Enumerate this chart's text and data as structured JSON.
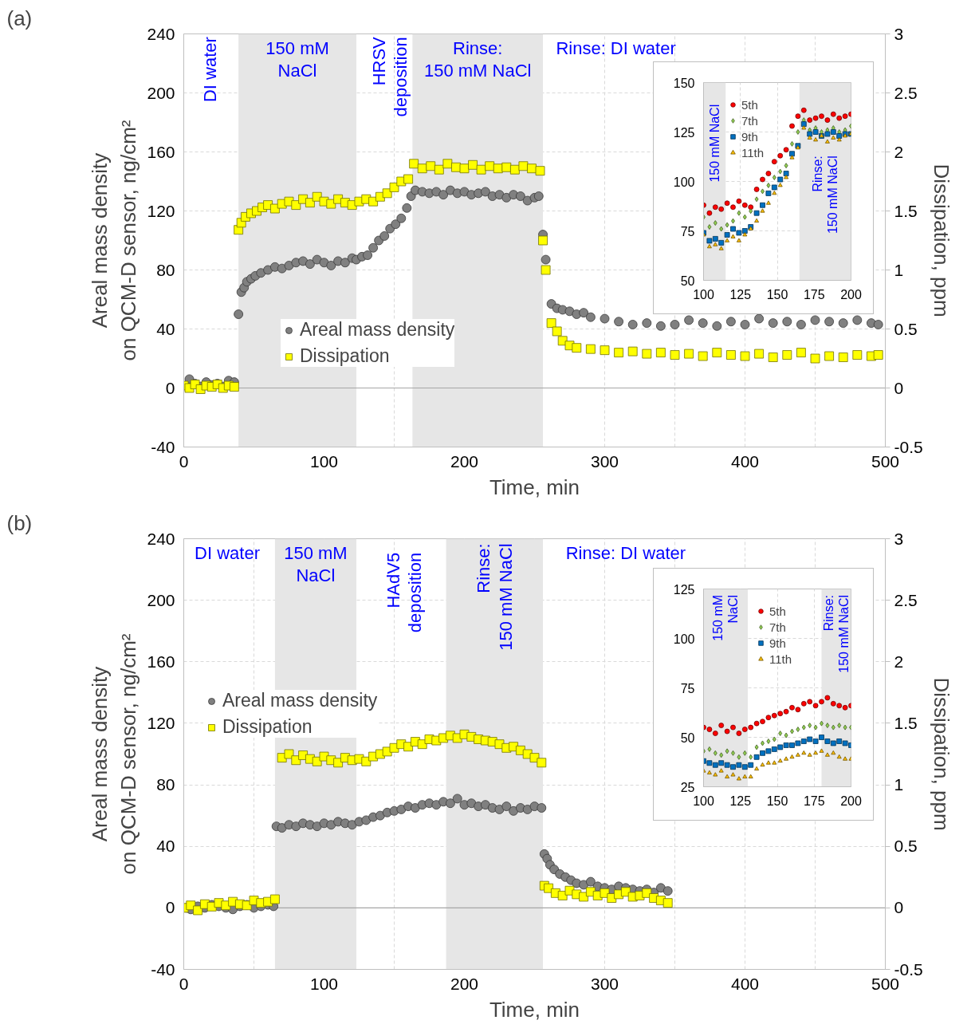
{
  "chart_data": [
    {
      "type": "scatter",
      "xlabel": "Time, min",
      "ylabel": "Areal mass density\non QCM-D sensor, ng/cm²",
      "y2label": "Dissipation, ppm",
      "annotations": [
        "(a)",
        "DI water",
        "HRSV\ndeposition",
        "Rinse: DI water"
      ],
      "xlim": [
        0,
        500
      ],
      "xticks": [
        0,
        {
          "value": 50,
          "label": null
        },
        100,
        {
          "value": 150,
          "label": null
        },
        200,
        {
          "value": 250,
          "label": null
        },
        300,
        {
          "value": 350,
          "label": null
        },
        400,
        {
          "value": 450,
          "label": null
        },
        500
      ],
      "ylim": [
        -40,
        240
      ],
      "yticks": [
        -40,
        0,
        40,
        80,
        120,
        160,
        200,
        240
      ],
      "y2lim": [
        -0.5,
        3
      ],
      "y2ticks": [
        -0.5,
        0,
        0.5,
        1,
        1.5,
        2,
        2.5,
        3
      ],
      "grid": true,
      "legend": "bottom left",
      "ref_lines": [
        {
          "axis": "y",
          "value": 0,
          "color": "#a6a6a6"
        }
      ],
      "bands": [
        {
          "axis": "x",
          "from": 39,
          "to": 123,
          "label": "150 mM\nNaCl",
          "color": "#e6e6e6"
        },
        {
          "axis": "x",
          "from": 163,
          "to": 256,
          "label": "Rinse:\n150 mM NaCl",
          "color": "#e6e6e6"
        }
      ],
      "series": [
        {
          "name": "Areal mass density",
          "color": "#808080",
          "marker": "circle",
          "x": [
            4,
            8,
            12,
            16,
            20,
            24,
            28,
            32,
            36,
            39,
            41,
            43,
            45,
            48,
            51,
            55,
            60,
            65,
            70,
            75,
            80,
            85,
            90,
            95,
            100,
            105,
            110,
            115,
            120,
            123,
            127,
            131,
            135,
            139,
            143,
            147,
            151,
            155,
            159,
            162,
            165,
            170,
            175,
            180,
            185,
            190,
            195,
            200,
            205,
            210,
            215,
            220,
            225,
            230,
            235,
            240,
            245,
            250,
            253,
            256,
            258,
            262,
            266,
            270,
            275,
            280,
            285,
            290,
            300,
            310,
            320,
            330,
            340,
            350,
            360,
            370,
            380,
            390,
            400,
            410,
            420,
            430,
            440,
            450,
            460,
            470,
            480,
            490,
            495
          ],
          "values": [
            6,
            3,
            1,
            4,
            2,
            3,
            1,
            5,
            4,
            50,
            65,
            68,
            72,
            74,
            76,
            78,
            80,
            82,
            81,
            83,
            85,
            86,
            84,
            87,
            85,
            83,
            86,
            85,
            88,
            87,
            89,
            90,
            95,
            100,
            103,
            108,
            111,
            115,
            122,
            130,
            134,
            133,
            132,
            133,
            131,
            134,
            132,
            133,
            131,
            132,
            133,
            130,
            131,
            129,
            131,
            130,
            127,
            129,
            130,
            104,
            87,
            57,
            54,
            53,
            52,
            50,
            51,
            48,
            47,
            45,
            43,
            44,
            42,
            43,
            46,
            44,
            42,
            45,
            43,
            47,
            44,
            45,
            43,
            46,
            45,
            44,
            46,
            44,
            43
          ]
        },
        {
          "name": "Dissipation",
          "color": "#ffff00",
          "marker": "square",
          "axis": "y2",
          "x": [
            0,
            4,
            8,
            12,
            16,
            20,
            24,
            28,
            32,
            36,
            39,
            41,
            44,
            48,
            52,
            56,
            60,
            65,
            70,
            75,
            80,
            85,
            90,
            95,
            100,
            105,
            110,
            115,
            120,
            125,
            130,
            135,
            140,
            145,
            150,
            155,
            160,
            164,
            170,
            176,
            182,
            188,
            194,
            200,
            206,
            212,
            218,
            224,
            230,
            236,
            242,
            248,
            254,
            256,
            258,
            262,
            266,
            270,
            275,
            280,
            290,
            300,
            310,
            320,
            330,
            340,
            350,
            360,
            370,
            380,
            390,
            400,
            410,
            420,
            430,
            440,
            450,
            460,
            470,
            480,
            490,
            495
          ],
          "values": [
            0.02,
            0.0,
            0.03,
            -0.01,
            0.02,
            0.01,
            0.03,
            0.0,
            0.02,
            0.01,
            1.34,
            1.4,
            1.45,
            1.48,
            1.5,
            1.53,
            1.55,
            1.52,
            1.56,
            1.58,
            1.55,
            1.6,
            1.57,
            1.62,
            1.58,
            1.56,
            1.6,
            1.57,
            1.55,
            1.58,
            1.6,
            1.58,
            1.62,
            1.65,
            1.7,
            1.75,
            1.77,
            1.9,
            1.86,
            1.88,
            1.85,
            1.9,
            1.87,
            1.86,
            1.89,
            1.85,
            1.88,
            1.86,
            1.87,
            1.85,
            1.88,
            1.86,
            1.84,
            1.25,
            1.0,
            0.55,
            0.48,
            0.4,
            0.36,
            0.34,
            0.33,
            0.32,
            0.3,
            0.31,
            0.29,
            0.3,
            0.28,
            0.29,
            0.27,
            0.3,
            0.28,
            0.27,
            0.29,
            0.26,
            0.28,
            0.3,
            0.25,
            0.27,
            0.26,
            0.28,
            0.27,
            0.28
          ]
        }
      ]
    },
    {
      "type": "scatter",
      "xlim": [
        100,
        200
      ],
      "xticks": [
        100,
        125,
        150,
        175,
        200
      ],
      "ylim": [
        50,
        150
      ],
      "yticks": [
        50,
        75,
        100,
        125,
        150
      ],
      "grid": true,
      "legend": "top left",
      "bands": [
        {
          "axis": "x",
          "from": 100,
          "to": 115,
          "label": "150 mM NaCl",
          "color": "#e6e6e6"
        },
        {
          "axis": "x",
          "from": 165,
          "to": 200,
          "label": "Rinse:\n150 mM NaCl",
          "color": "#e6e6e6"
        }
      ],
      "x": [
        100,
        104,
        108,
        112,
        116,
        120,
        124,
        128,
        132,
        136,
        140,
        144,
        148,
        152,
        156,
        160,
        164,
        168,
        172,
        176,
        180,
        184,
        188,
        192,
        196,
        200
      ],
      "series": [
        {
          "name": "5th",
          "color": "#ff0000",
          "marker": "circle",
          "values": [
            88,
            84,
            87,
            86,
            89,
            87,
            90,
            88,
            87,
            96,
            101,
            104,
            110,
            113,
            116,
            128,
            133,
            136,
            131,
            132,
            133,
            131,
            134,
            132,
            133,
            134
          ]
        },
        {
          "name": "7th",
          "color": "#92d050",
          "marker": "diamond",
          "values": [
            82,
            77,
            79,
            76,
            78,
            80,
            84,
            82,
            85,
            91,
            95,
            98,
            102,
            105,
            108,
            119,
            125,
            131,
            126,
            127,
            125,
            126,
            127,
            125,
            126,
            128
          ]
        },
        {
          "name": "9th",
          "color": "#0070c0",
          "marker": "square",
          "values": [
            74,
            70,
            71,
            69,
            73,
            76,
            74,
            75,
            77,
            84,
            88,
            94,
            97,
            101,
            104,
            114,
            118,
            129,
            124,
            125,
            123,
            124,
            125,
            123,
            124,
            124
          ]
        },
        {
          "name": "11th",
          "color": "#ffc000",
          "marker": "triangle",
          "values": [
            73,
            67,
            68,
            66,
            70,
            72,
            70,
            73,
            76,
            80,
            85,
            89,
            94,
            98,
            102,
            112,
            117,
            127,
            122,
            121,
            123,
            120,
            122,
            121,
            123,
            124
          ]
        }
      ]
    },
    {
      "type": "scatter",
      "xlabel": "Time, min",
      "ylabel": "Areal mass density\non QCM-D sensor, ng/cm²",
      "y2label": "Dissipation, ppm",
      "annotations": [
        "(b)",
        "DI water",
        "HAdV5\ndeposition",
        "Rinse: DI water"
      ],
      "xlim": [
        0,
        500
      ],
      "xticks": [
        0,
        {
          "value": 50,
          "label": null
        },
        100,
        {
          "value": 150,
          "label": null
        },
        200,
        {
          "value": 250,
          "label": null
        },
        300,
        {
          "value": 350,
          "label": null
        },
        400,
        {
          "value": 450,
          "label": null
        },
        500
      ],
      "ylim": [
        -40,
        240
      ],
      "yticks": [
        -40,
        0,
        40,
        80,
        120,
        160,
        200,
        240
      ],
      "y2lim": [
        -0.5,
        3
      ],
      "y2ticks": [
        -0.5,
        0,
        0.5,
        1,
        1.5,
        2,
        2.5,
        3
      ],
      "grid": true,
      "legend": "top left",
      "ref_lines": [
        {
          "axis": "y",
          "value": 0,
          "color": "#a6a6a6"
        }
      ],
      "bands": [
        {
          "axis": "x",
          "from": 65,
          "to": 123,
          "label": "150 mM\nNaCl",
          "color": "#e6e6e6"
        },
        {
          "axis": "x",
          "from": 187,
          "to": 256,
          "label": "Rinse:\n150 mM NaCl",
          "color": "#e6e6e6"
        }
      ],
      "series": [
        {
          "name": "Areal mass density",
          "color": "#808080",
          "marker": "circle",
          "x": [
            2,
            5,
            10,
            15,
            20,
            25,
            30,
            35,
            40,
            45,
            50,
            55,
            60,
            64,
            66,
            70,
            75,
            80,
            85,
            90,
            95,
            100,
            105,
            110,
            115,
            120,
            125,
            130,
            135,
            140,
            145,
            150,
            155,
            160,
            165,
            170,
            175,
            180,
            185,
            190,
            195,
            200,
            205,
            210,
            215,
            220,
            225,
            230,
            235,
            240,
            245,
            250,
            255,
            257,
            259,
            261,
            264,
            268,
            272,
            276,
            280,
            285,
            290,
            295,
            300,
            305,
            310,
            315,
            320,
            325,
            330,
            335,
            340,
            345
          ],
          "values": [
            0,
            -1,
            1,
            0,
            2,
            1,
            0,
            -1,
            1,
            2,
            0,
            1,
            2,
            1,
            53,
            52,
            54,
            53,
            55,
            54,
            53,
            55,
            54,
            56,
            55,
            54,
            56,
            57,
            59,
            60,
            62,
            63,
            64,
            66,
            65,
            67,
            68,
            67,
            69,
            68,
            71,
            67,
            68,
            66,
            67,
            65,
            64,
            66,
            63,
            65,
            64,
            66,
            65,
            35,
            32,
            28,
            25,
            22,
            20,
            18,
            16,
            15,
            17,
            14,
            13,
            12,
            14,
            13,
            12,
            11,
            12,
            10,
            13,
            11
          ]
        },
        {
          "name": "Dissipation",
          "color": "#ffff00",
          "marker": "square",
          "axis": "y2",
          "x": [
            0,
            5,
            10,
            15,
            20,
            25,
            30,
            35,
            40,
            45,
            50,
            55,
            60,
            65,
            70,
            75,
            80,
            85,
            90,
            95,
            100,
            105,
            110,
            115,
            120,
            125,
            130,
            135,
            140,
            145,
            150,
            155,
            160,
            165,
            170,
            175,
            180,
            185,
            190,
            195,
            200,
            205,
            210,
            215,
            220,
            225,
            230,
            235,
            240,
            245,
            250,
            255,
            257,
            260,
            265,
            270,
            275,
            280,
            285,
            290,
            295,
            300,
            305,
            310,
            315,
            320,
            325,
            330,
            335,
            340,
            345
          ],
          "values": [
            0.0,
            0.02,
            -0.02,
            0.03,
            0.01,
            0.04,
            0.02,
            0.05,
            0.03,
            0.02,
            0.06,
            0.04,
            0.05,
            0.07,
            1.22,
            1.25,
            1.2,
            1.24,
            1.21,
            1.19,
            1.23,
            1.2,
            1.18,
            1.22,
            1.2,
            1.21,
            1.19,
            1.23,
            1.25,
            1.27,
            1.3,
            1.33,
            1.31,
            1.35,
            1.33,
            1.37,
            1.36,
            1.38,
            1.4,
            1.38,
            1.41,
            1.39,
            1.37,
            1.36,
            1.35,
            1.33,
            1.3,
            1.31,
            1.28,
            1.25,
            1.22,
            1.18,
            0.18,
            0.16,
            0.12,
            0.1,
            0.14,
            0.11,
            0.09,
            0.13,
            0.1,
            0.12,
            0.08,
            0.11,
            0.13,
            0.09,
            0.1,
            0.12,
            0.08,
            0.06,
            0.04
          ]
        }
      ]
    },
    {
      "type": "scatter",
      "xlim": [
        100,
        200
      ],
      "xticks": [
        100,
        125,
        150,
        175,
        200
      ],
      "ylim": [
        25,
        125
      ],
      "yticks": [
        25,
        50,
        75,
        100,
        125
      ],
      "grid": true,
      "legend": "top",
      "bands": [
        {
          "axis": "x",
          "from": 100,
          "to": 130,
          "label": "150 mM\nNaCl",
          "color": "#e6e6e6"
        },
        {
          "axis": "x",
          "from": 180,
          "to": 200,
          "label": "Rinse:\n150 mM NaCl",
          "color": "#e6e6e6"
        }
      ],
      "x": [
        100,
        104,
        108,
        112,
        116,
        120,
        124,
        128,
        132,
        136,
        140,
        144,
        148,
        152,
        156,
        160,
        164,
        168,
        172,
        176,
        180,
        184,
        188,
        192,
        196,
        200
      ],
      "series": [
        {
          "name": "5th",
          "color": "#ff0000",
          "marker": "circle",
          "values": [
            55,
            54,
            52,
            56,
            53,
            55,
            52,
            54,
            55,
            57,
            58,
            60,
            61,
            62,
            63,
            65,
            64,
            67,
            68,
            66,
            68,
            70,
            67,
            66,
            65,
            66
          ]
        },
        {
          "name": "7th",
          "color": "#92d050",
          "marker": "diamond",
          "values": [
            43,
            44,
            42,
            41,
            43,
            42,
            40,
            42,
            40,
            45,
            47,
            48,
            49,
            52,
            51,
            53,
            54,
            55,
            56,
            55,
            57,
            56,
            55,
            56,
            55,
            55
          ]
        },
        {
          "name": "9th",
          "color": "#0070c0",
          "marker": "square",
          "values": [
            38,
            37,
            36,
            37,
            36,
            35,
            36,
            35,
            36,
            40,
            42,
            43,
            44,
            45,
            46,
            46,
            47,
            48,
            49,
            48,
            50,
            48,
            47,
            48,
            47,
            46
          ]
        },
        {
          "name": "11th",
          "color": "#ffc000",
          "marker": "triangle",
          "values": [
            33,
            32,
            31,
            33,
            30,
            31,
            29,
            30,
            30,
            34,
            36,
            37,
            37,
            38,
            39,
            40,
            41,
            42,
            41,
            42,
            43,
            41,
            42,
            40,
            39,
            39
          ]
        }
      ]
    }
  ]
}
